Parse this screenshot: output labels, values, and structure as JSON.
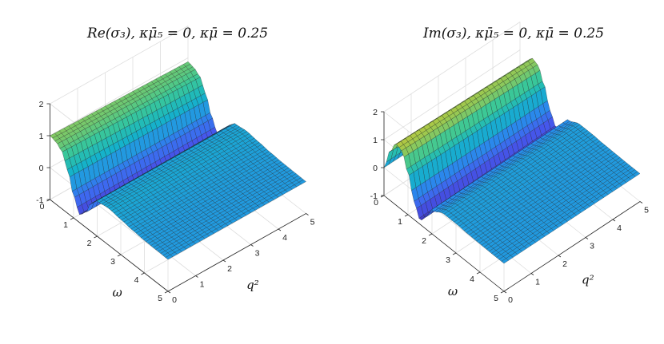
{
  "chart_data": [
    {
      "type": "surface",
      "title": "Re(σ₃),  κμ̄₅ = 0,  κμ̄ = 0.25",
      "xlabel": "q²",
      "ylabel": "ω",
      "zlabel": "",
      "xlim": [
        0,
        5
      ],
      "ylim": [
        0,
        5
      ],
      "zlim": [
        -1,
        2
      ],
      "xticks": [
        "0",
        "1",
        "2",
        "3",
        "4",
        "5"
      ],
      "yticks": [
        "0",
        "1",
        "2",
        "3",
        "4",
        "5"
      ],
      "zticks": [
        "-1",
        "0",
        "1",
        "2"
      ],
      "grid": true,
      "colormap": "parula",
      "omega_samples": [
        0,
        0.25,
        0.5,
        0.75,
        1.0,
        1.25,
        1.5,
        1.75,
        2.0,
        2.5,
        3.0,
        3.5,
        4.0,
        4.5,
        5.0
      ],
      "surface_values": [
        1.0,
        0.95,
        0.8,
        0.35,
        -0.3,
        -0.75,
        -0.55,
        -0.1,
        0.1,
        0.15,
        0.1,
        0.05,
        0.02,
        0.01,
        0.0
      ],
      "q2_range_at_max": [
        0.0,
        0.0
      ]
    },
    {
      "type": "surface",
      "title": "Im(σ₃),  κμ̄₅ = 0,  κμ̄ = 0.25",
      "xlabel": "q²",
      "ylabel": "ω",
      "zlabel": "",
      "xlim": [
        0,
        5
      ],
      "ylim": [
        0,
        5
      ],
      "zlim": [
        -1,
        2
      ],
      "xticks": [
        "0",
        "1",
        "2",
        "3",
        "4",
        "5"
      ],
      "yticks": [
        "0",
        "1",
        "2",
        "3",
        "4",
        "5"
      ],
      "zticks": [
        "-1",
        "0",
        "1",
        "2"
      ],
      "grid": true,
      "colormap": "parula",
      "omega_samples": [
        0,
        0.25,
        0.5,
        0.75,
        1.0,
        1.25,
        1.5,
        1.75,
        2.0,
        2.5,
        3.0,
        3.5,
        4.0,
        4.5,
        5.0
      ],
      "surface_values": [
        0.0,
        0.75,
        1.2,
        1.1,
        0.5,
        -0.35,
        -0.85,
        -0.55,
        -0.15,
        0.05,
        0.05,
        0.02,
        0.01,
        0.0,
        0.0
      ]
    }
  ]
}
